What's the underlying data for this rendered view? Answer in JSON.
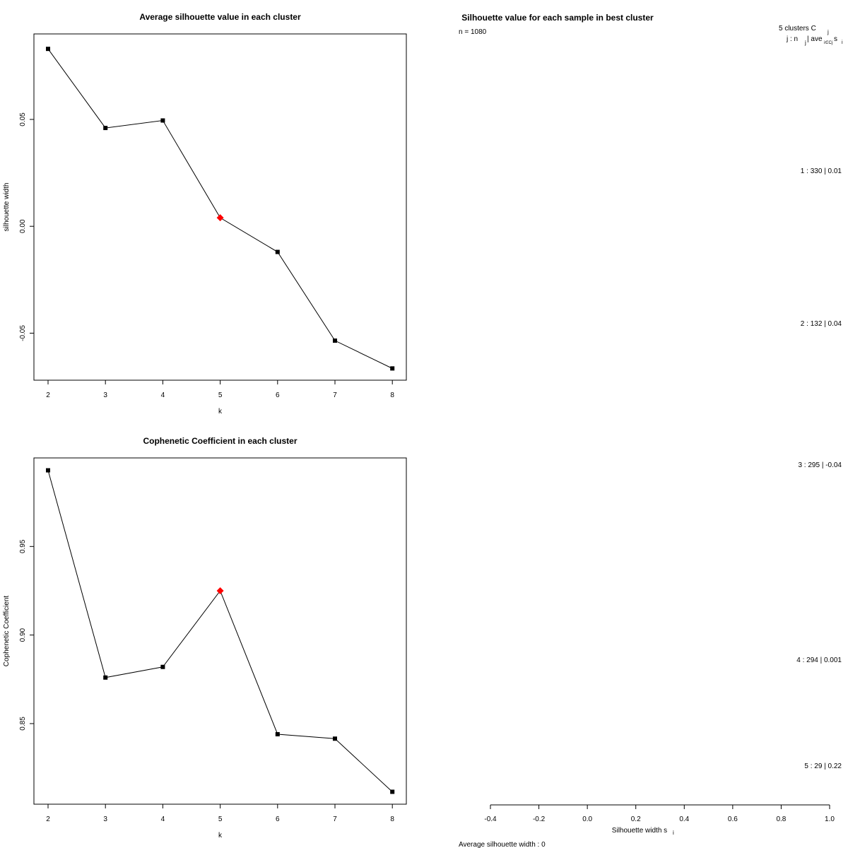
{
  "chart_data": [
    {
      "type": "line",
      "title": "Average silhouette value in each cluster",
      "xlabel": "k",
      "ylabel": "silhouette width",
      "x": [
        2,
        3,
        4,
        5,
        6,
        7,
        8
      ],
      "values": [
        0.083,
        0.046,
        0.0495,
        0.004,
        -0.012,
        -0.0535,
        -0.0665
      ],
      "highlight_k": 5,
      "highlight_color": "#ff0000",
      "ylim": [
        -0.072,
        0.09
      ],
      "yticks": [
        -0.05,
        0.0,
        0.05
      ],
      "ytick_labels": [
        "-0.05",
        "0.00",
        "0.05"
      ],
      "xticks": [
        2,
        3,
        4,
        5,
        6,
        7,
        8
      ]
    },
    {
      "type": "line",
      "title": "Cophenetic Coefficient in each cluster",
      "xlabel": "k",
      "ylabel": "Cophenetic Coefficient",
      "x": [
        2,
        3,
        4,
        5,
        6,
        7,
        8
      ],
      "values": [
        0.993,
        0.876,
        0.882,
        0.925,
        0.844,
        0.8415,
        0.8115
      ],
      "highlight_k": 5,
      "highlight_color": "#ff0000",
      "ylim": [
        0.8045,
        1.0
      ],
      "yticks": [
        0.85,
        0.9,
        0.95
      ],
      "ytick_labels": [
        "0.85",
        "0.90",
        "0.95"
      ],
      "xticks": [
        2,
        3,
        4,
        5,
        6,
        7,
        8
      ]
    },
    {
      "type": "bar",
      "title": "Silhouette value for each sample in best cluster",
      "n_label": "n = 1080",
      "header_line1": "5  clusters  C",
      "header_line1_sub": "j",
      "header_line2": "j :  n",
      "header_line2_sub": "j",
      "header_line2_rest": " | ave",
      "header_line2_sub2": "i∈Cj",
      "header_line2_tail": " s",
      "header_line2_sub3": "i",
      "clusters": [
        {
          "label": "1 :   330  |  0.01",
          "n": 330,
          "avg": 0.01
        },
        {
          "label": "2 :   132  |  0.04",
          "n": 132,
          "avg": 0.04
        },
        {
          "label": "3 :   295  |  -0.04",
          "n": 295,
          "avg": -0.04
        },
        {
          "label": "4 :   294  |  0.001",
          "n": 294,
          "avg": 0.001
        },
        {
          "label": "5 :   29  |  0.22",
          "n": 29,
          "avg": 0.22
        }
      ],
      "xlim": [
        -0.4,
        1.0
      ],
      "xticks": [
        -0.4,
        -0.2,
        0.0,
        0.2,
        0.4,
        0.6,
        0.8,
        1.0
      ],
      "xtick_labels": [
        "-0.4",
        "-0.2",
        "0.0",
        "0.2",
        "0.4",
        "0.6",
        "0.8",
        "1.0"
      ],
      "xlabel": "Silhouette width s",
      "xlabel_sub": "i",
      "footer": "Average silhouette width :  0"
    }
  ]
}
